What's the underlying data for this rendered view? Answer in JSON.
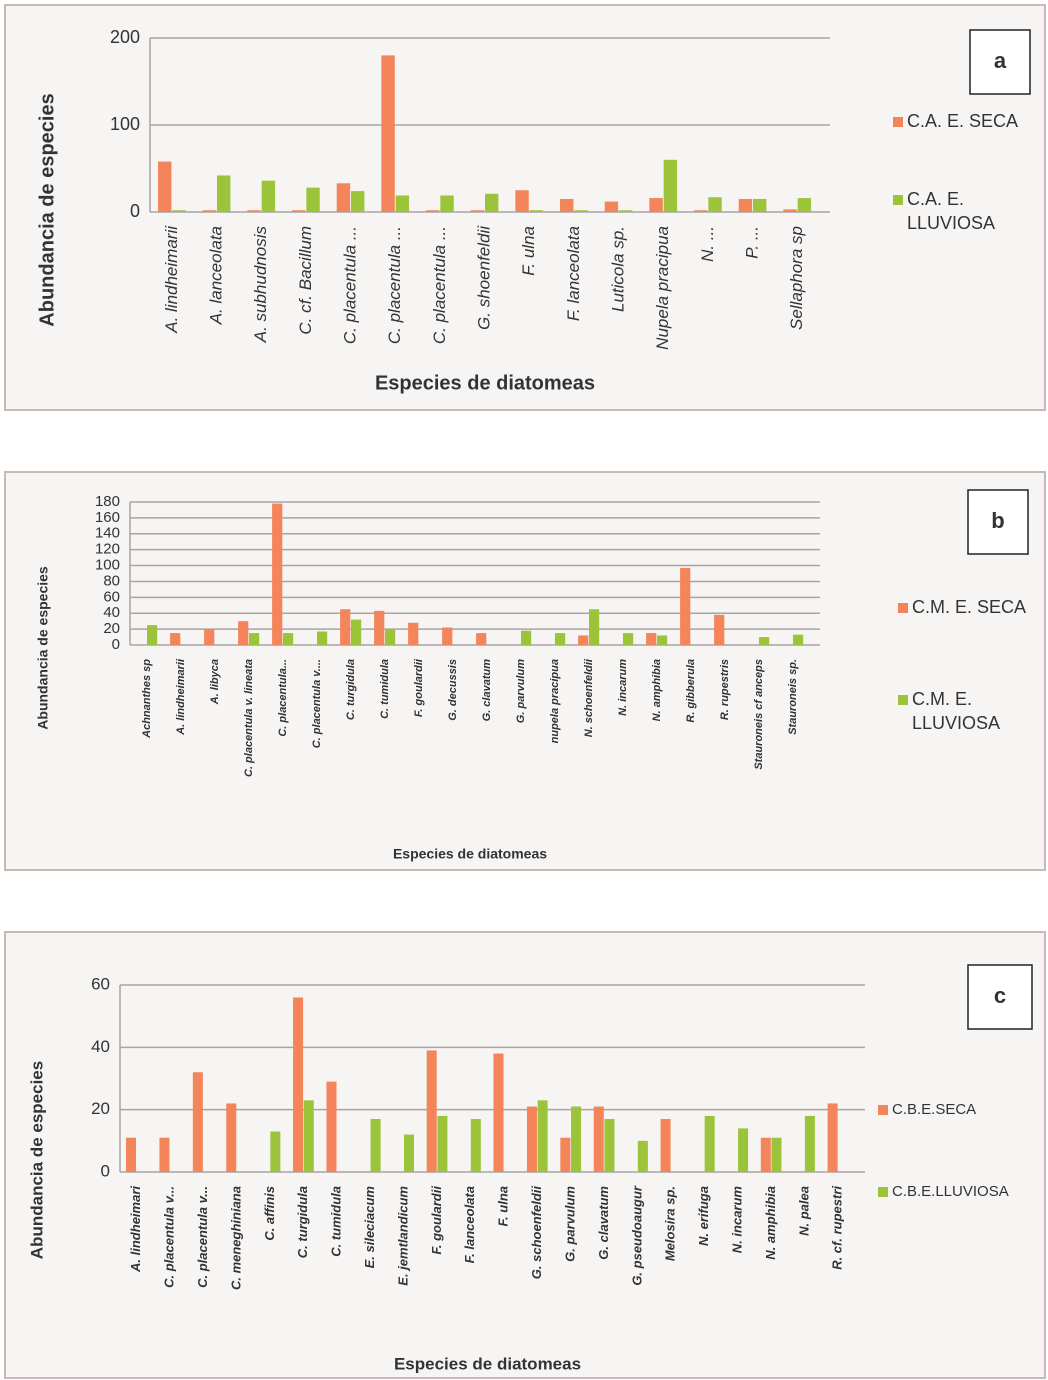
{
  "chart_data": [
    {
      "type": "bar",
      "label": "a",
      "x_label": "Especies de diatomeas",
      "y_label": "Abundancia de especies",
      "categories": [
        "A. lindheimarii",
        "A. lanceolata",
        "A. subhudnosis",
        "C. cf. Bacillum",
        "C. placentula ...",
        "C. placentula ...",
        "C. placentula ...",
        "G. shoenfeldii",
        "F. ulna",
        "F. lanceolata",
        "Luticola sp.",
        "Nupela pracipua",
        "N. ...",
        "P. ...",
        "Sellaphora sp"
      ],
      "series": [
        {
          "name": "C.A. E. SECA",
          "color": "#f4845a",
          "values": [
            58,
            2,
            2,
            2,
            33,
            180,
            2,
            2,
            25,
            15,
            12,
            16,
            2,
            15,
            3
          ]
        },
        {
          "name": "C.A. E. LLUVIOSA",
          "color": "#9cc43a",
          "values": [
            2,
            42,
            36,
            28,
            24,
            19,
            19,
            21,
            2,
            2,
            2,
            60,
            17,
            15,
            16
          ]
        }
      ],
      "ylim": [
        0,
        200
      ],
      "yticks": [
        0,
        100,
        200
      ],
      "grid": true
    },
    {
      "type": "bar",
      "label": "b",
      "x_label": "Especies de diatomeas",
      "y_label": "Abundancia de especies",
      "categories": [
        "Achnanthes sp",
        "A. lindheimarii",
        "A. libyca",
        "C. placentula v. lineata",
        "C. placentula...",
        "C. placentula v....",
        "C. turgidula",
        "C. tumidula",
        "F. goulardii",
        "G. decussis",
        "G. clavatum",
        "G. parvulum",
        "nupela pracipua",
        "N. schoenfeldii",
        "N. incarum",
        "N. amphibia",
        "R. gibberula",
        "R. rupestris",
        "Stauroneis cf anceps",
        "Stauroneis sp."
      ],
      "series": [
        {
          "name": "C.M. E. SECA",
          "color": "#f4845a",
          "values": [
            0,
            15,
            20,
            30,
            178,
            0,
            45,
            43,
            28,
            22,
            15,
            0,
            0,
            12,
            0,
            15,
            97,
            38,
            0,
            0
          ]
        },
        {
          "name": "C.M. E. LLUVIOSA",
          "color": "#9cc43a",
          "values": [
            25,
            0,
            0,
            15,
            15,
            17,
            32,
            20,
            0,
            0,
            0,
            18,
            15,
            45,
            15,
            12,
            0,
            0,
            10,
            13
          ]
        }
      ],
      "ylim": [
        0,
        180
      ],
      "yticks": [
        0,
        20,
        40,
        60,
        80,
        100,
        120,
        140,
        160,
        180
      ],
      "grid": true
    },
    {
      "type": "bar",
      "label": "c",
      "x_label": "Especies de diatomeas",
      "y_label": "Abundancia de  especies",
      "categories": [
        "A. lindheimari",
        "C. placentula v...",
        "C. placentula v...",
        "C. meneghiniana",
        "C. affinis",
        "C. turgidula",
        "C. tumidula",
        "E. sileciacum",
        "E. jemtlandicum",
        "F. goulardii",
        "F. lanceolata",
        "F. ulna",
        "G. schoenfeldii",
        "G. parvulum",
        "G. clavatum",
        "G. pseudoaugur",
        "Melosira sp.",
        "N. erifuga",
        "N. incarum",
        "N. amphibia",
        "N. palea",
        "R. cf. rupestri"
      ],
      "series": [
        {
          "name": "C.B.E.SECA",
          "color": "#f4845a",
          "values": [
            11,
            11,
            32,
            22,
            0,
            56,
            29,
            0,
            0,
            39,
            0,
            38,
            21,
            11,
            21,
            0,
            17,
            0,
            0,
            11,
            0,
            22
          ]
        },
        {
          "name": "C.B.E.LLUVIOSA",
          "color": "#9cc43a",
          "values": [
            0,
            0,
            0,
            0,
            13,
            23,
            0,
            17,
            12,
            18,
            17,
            0,
            23,
            21,
            17,
            10,
            0,
            18,
            14,
            11,
            18,
            0
          ]
        }
      ],
      "ylim": [
        0,
        60
      ],
      "yticks": [
        0,
        20,
        40,
        60
      ],
      "grid": true
    }
  ]
}
